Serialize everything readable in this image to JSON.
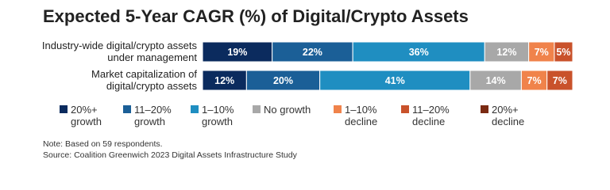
{
  "chart_data": {
    "type": "bar",
    "orientation": "horizontal",
    "stacked": true,
    "title": "Expected 5-Year CAGR (%) of Digital/Crypto Assets",
    "categories": [
      "Industry-wide digital/crypto assets under management",
      "Market capitalization of digital/crypto assets"
    ],
    "series": [
      {
        "name": "20%+ growth",
        "color": "#0b2b5e",
        "values": [
          19,
          12
        ],
        "value_labels": [
          "19%",
          "12%"
        ]
      },
      {
        "name": "11–20% growth",
        "color": "#1b5f97",
        "values": [
          22,
          20
        ],
        "value_labels": [
          "22%",
          "20%"
        ]
      },
      {
        "name": "1–10% growth",
        "color": "#1f8ec1",
        "values": [
          36,
          41
        ],
        "value_labels": [
          "36%",
          "41%"
        ]
      },
      {
        "name": "No growth",
        "color": "#a8a8a8",
        "values": [
          12,
          14
        ],
        "value_labels": [
          "12%",
          "14%"
        ]
      },
      {
        "name": "1–10% decline",
        "color": "#f0834b",
        "values": [
          7,
          7
        ],
        "value_labels": [
          "7%",
          "7%"
        ]
      },
      {
        "name": "11–20% decline",
        "color": "#c9522b",
        "values": [
          5,
          7
        ],
        "value_labels": [
          "5%",
          "7%"
        ]
      },
      {
        "name": "20%+ decline",
        "color": "#7a2a12",
        "values": [
          0,
          0
        ],
        "value_labels": [
          null,
          null
        ]
      }
    ],
    "xlim": [
      0,
      101
    ],
    "note": "Note: Based on 59 respondents.",
    "source": "Source: Coalition Greenwich 2023 Digital Assets Infrastructure Study"
  }
}
